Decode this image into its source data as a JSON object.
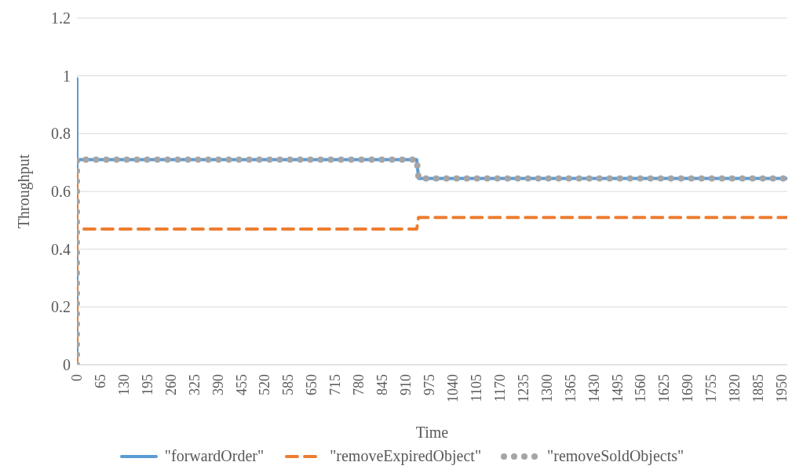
{
  "chart_data": {
    "type": "line",
    "xlabel": "Time",
    "ylabel": "Throughput",
    "xlim": [
      0,
      1965
    ],
    "xticks": [
      0,
      65,
      130,
      195,
      260,
      325,
      390,
      455,
      520,
      585,
      650,
      715,
      780,
      845,
      910,
      975,
      1040,
      1105,
      1170,
      1235,
      1300,
      1365,
      1430,
      1495,
      1560,
      1625,
      1690,
      1755,
      1820,
      1885,
      1950
    ],
    "ylim": [
      0,
      1.2
    ],
    "yticks": [
      0,
      0.2,
      0.4,
      0.6,
      0.8,
      1,
      1.2
    ],
    "grid": "y",
    "legend": "bottom",
    "series": [
      {
        "name": "\"forwardOrder\"",
        "color": "#5b9bd5",
        "line_style": "solid",
        "x": [
          0,
          0,
          0,
          940,
          945,
          1965
        ],
        "values": [
          0,
          0.99,
          0.71,
          0.71,
          0.645,
          0.645
        ]
      },
      {
        "name": "\"removeExpiredObject\"",
        "color": "#ed7d31",
        "line_style": "dashed",
        "x": [
          0,
          0,
          0,
          940,
          945,
          1965
        ],
        "values": [
          0,
          0.66,
          0.47,
          0.47,
          0.51,
          0.51
        ]
      },
      {
        "name": "\"removeSoldObjects\"",
        "color": "#a5a5a5",
        "line_style": "dotted",
        "x": [
          0,
          0,
          940,
          945,
          1965
        ],
        "values": [
          0,
          0.71,
          0.71,
          0.645,
          0.645
        ]
      }
    ]
  }
}
